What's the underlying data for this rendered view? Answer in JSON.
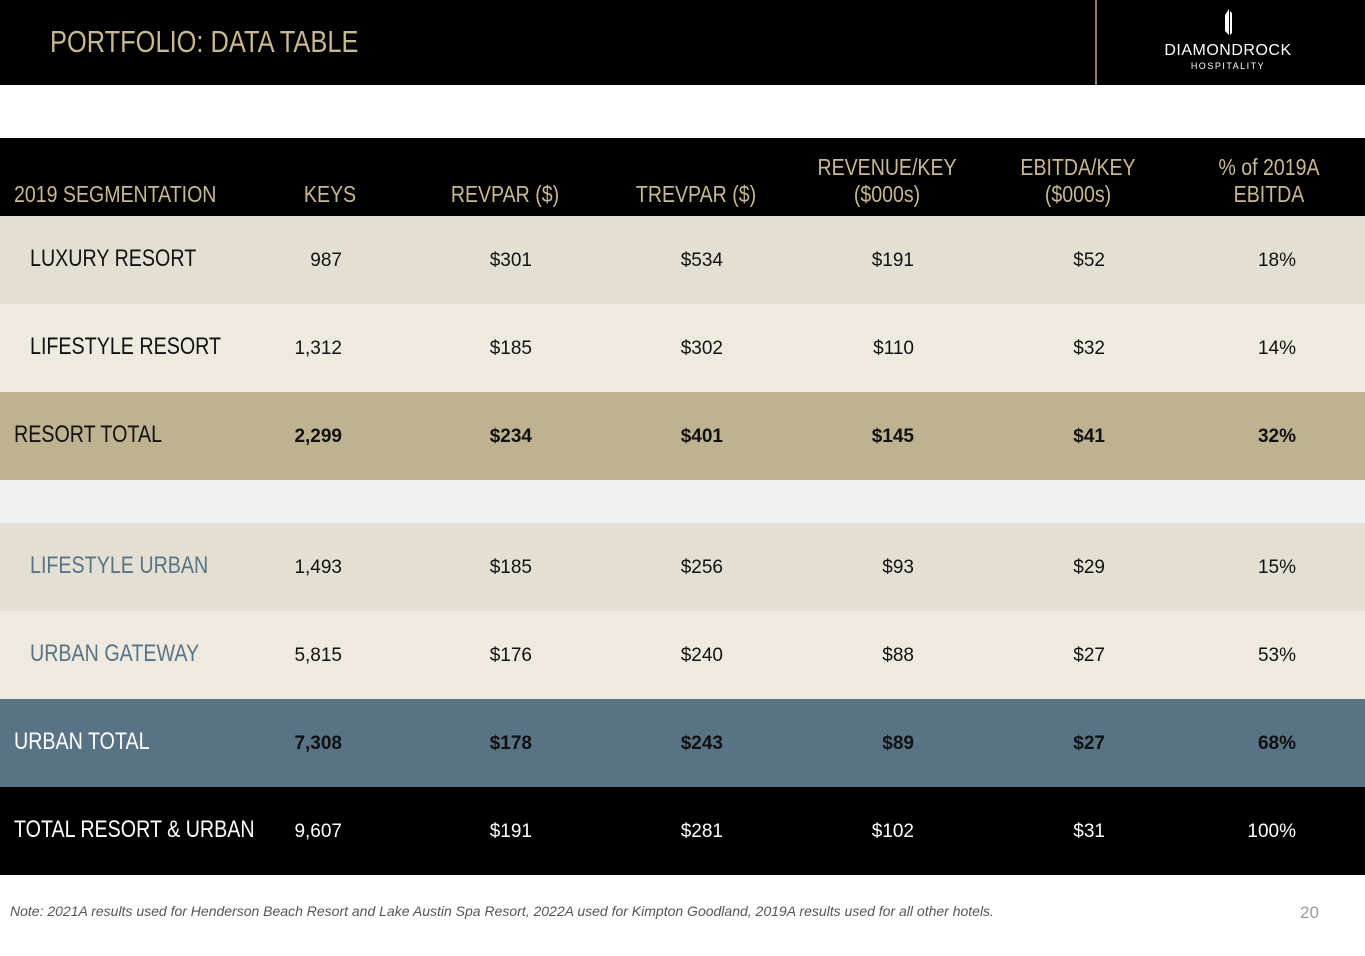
{
  "header": {
    "title": "PORTFOLIO: DATA TABLE",
    "logo": {
      "name": "DIAMONDROCK",
      "tagline": "HOSPITALITY"
    }
  },
  "table": {
    "columns": [
      [
        "2019 SEGMENTATION"
      ],
      [
        "KEYS"
      ],
      [
        "REVPAR ($)"
      ],
      [
        "TREVPAR ($)"
      ],
      [
        "REVENUE/KEY",
        "($000s)"
      ],
      [
        "EBITDA/KEY",
        "($000s)"
      ],
      [
        "% of 2019A",
        "EBITDA"
      ]
    ],
    "rows": [
      [
        "LUXURY RESORT",
        "987",
        "$301",
        "$534",
        "$191",
        "$52",
        "18%"
      ],
      [
        "LIFESTYLE RESORT",
        "1,312",
        "$185",
        "$302",
        "$110",
        "$32",
        "14%"
      ],
      [
        "RESORT TOTAL",
        "2,299",
        "$234",
        "$401",
        "$145",
        "$41",
        "32%"
      ],
      [
        "LIFESTYLE URBAN",
        "1,493",
        "$185",
        "$256",
        "$93",
        "$29",
        "15%"
      ],
      [
        "URBAN GATEWAY",
        "5,815",
        "$176",
        "$240",
        "$88",
        "$27",
        "53%"
      ],
      [
        "URBAN TOTAL",
        "7,308",
        "$178",
        "$243",
        "$89",
        "$27",
        "68%"
      ],
      [
        "TOTAL RESORT & URBAN",
        "9,607",
        "$191",
        "$281",
        "$102",
        "$31",
        "100%"
      ]
    ]
  },
  "footer": {
    "note": "Note: 2021A results used for Henderson Beach Resort and Lake Austin Spa Resort, 2022A used for Kimpton Goodland, 2019A results used for all other hotels.",
    "page_number": "20"
  }
}
